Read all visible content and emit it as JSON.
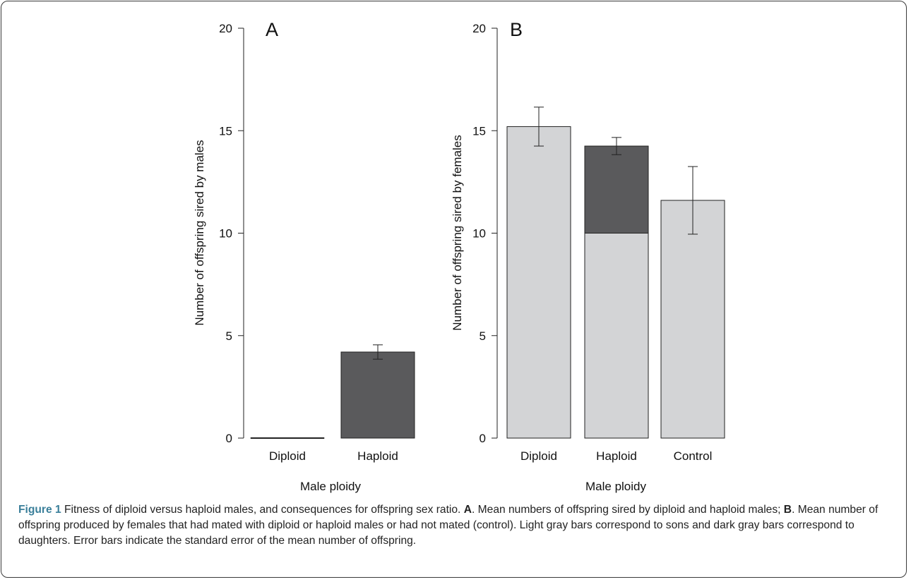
{
  "chart_data": [
    {
      "type": "bar",
      "panel": "A",
      "categories": [
        "Diploid",
        "Haploid"
      ],
      "series": [
        {
          "values": [
            0,
            4.2
          ],
          "error": [
            0,
            0.35
          ],
          "color": "#5a5a5c"
        }
      ],
      "xlabel": "Male ploidy",
      "ylabel": "Number of offspring sired by males",
      "ylim": [
        0,
        20
      ],
      "yticks": [
        "0",
        "5",
        "10",
        "15",
        "20"
      ],
      "grid": false
    },
    {
      "type": "bar",
      "stacked": true,
      "panel": "B",
      "categories": [
        "Diploid",
        "Haploid",
        "Control"
      ],
      "series": [
        {
          "values": [
            15.2,
            10.0,
            11.6
          ],
          "color": "#d3d4d6"
        },
        {
          "values": [
            0,
            4.25,
            0
          ],
          "color": "#5a5a5c"
        }
      ],
      "totals_error": [
        0.95,
        0.42,
        1.65
      ],
      "xlabel": "Male ploidy",
      "ylabel": "Number of offspring sired by females",
      "ylim": [
        0,
        20
      ],
      "yticks": [
        "0",
        "5",
        "10",
        "15",
        "20"
      ],
      "grid": false
    }
  ],
  "caption": {
    "figure_label": "Figure 1",
    "intro": " Fitness of diploid versus haploid males, and consequences for offspring sex ratio. ",
    "a_label": "A",
    "a_text": ". Mean numbers of offspring sired by diploid and haploid males; ",
    "b_label": "B",
    "b_text": ". Mean number of offspring produced by females that had mated with diploid or haploid males or had not mated (control). Light gray bars correspond to sons and dark gray bars correspond to daughters. Error bars indicate the standard error of the mean number of offspring."
  }
}
